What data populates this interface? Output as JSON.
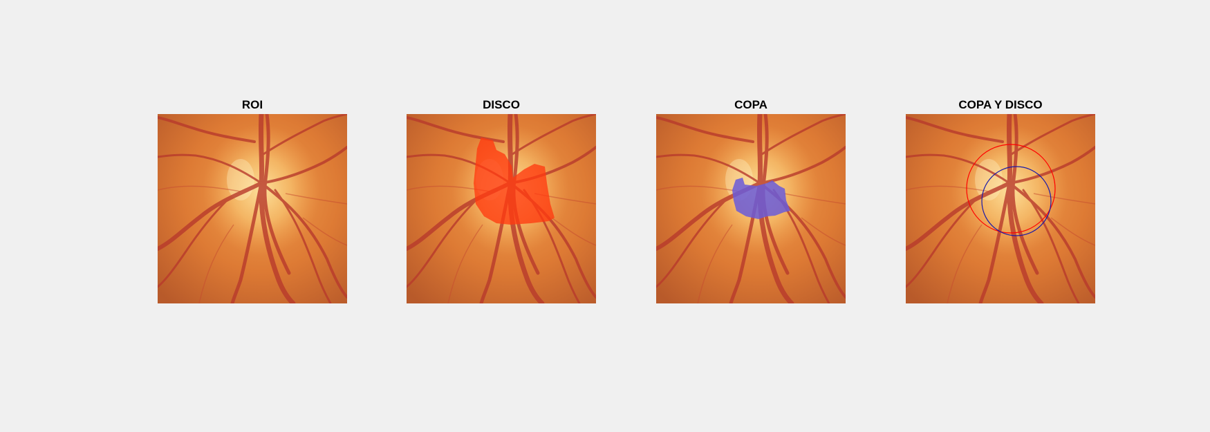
{
  "figure": {
    "panels": [
      {
        "title": "ROI"
      },
      {
        "title": "DISCO"
      },
      {
        "title": "COPA"
      },
      {
        "title": "COPA Y DISCO"
      }
    ]
  },
  "colors": {
    "background": "#f0f0f0",
    "fundus_base": "#d8742f",
    "disc_overlay": "#ff3a10",
    "cup_overlay": "#6a5bd8",
    "disc_contour": "#ff0000",
    "cup_contour": "#1a1aa8"
  }
}
